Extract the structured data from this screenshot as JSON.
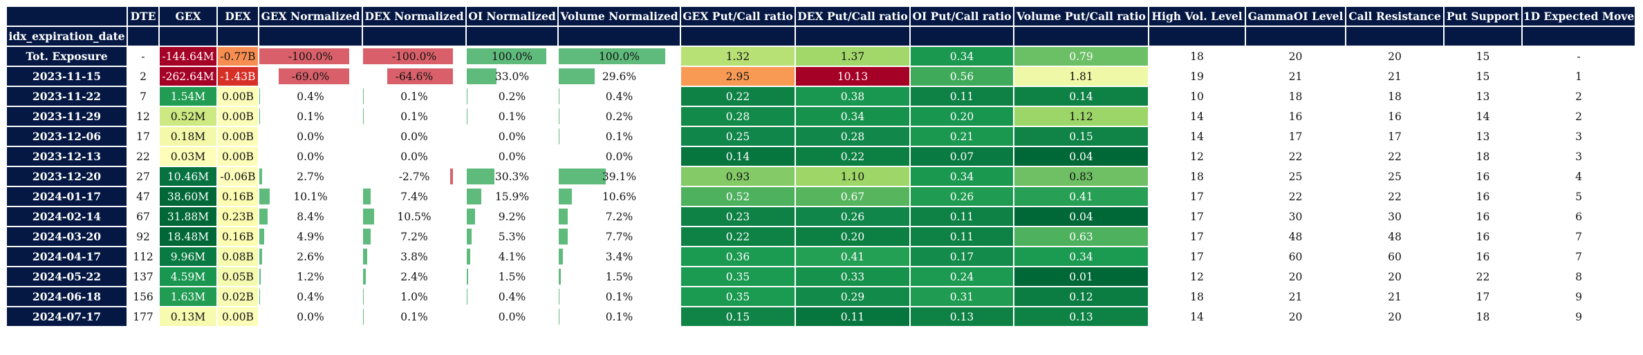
{
  "header": {
    "index_name": "idx_expiration_date",
    "columns": [
      "DTE",
      "GEX",
      "DEX",
      "GEX Normalized",
      "DEX Normalized",
      "OI Normalized",
      "Volume Normalized",
      "GEX Put/Call ratio",
      "DEX Put/Call ratio",
      "OI Put/Call ratio",
      "Volume Put/Call ratio",
      "High Vol. Level",
      "GammaOI Level",
      "Call Resistance",
      "Put Support",
      "1D Expected Move"
    ]
  },
  "colors": {
    "header_bg": "#051844",
    "bar_positive": "#5fbb7c",
    "bar_negative": "#d9606a",
    "text_dark": "#111111",
    "text_light": "#ffffff"
  },
  "rows": [
    {
      "date": "Tot. Exposure",
      "dte": "-",
      "gex": {
        "text": "-144.64M",
        "bg": "#a50026",
        "fg": "#ffffff"
      },
      "dex": {
        "text": "-0.77B",
        "bg": "#f88d52",
        "fg": "#111111"
      },
      "gex_norm": {
        "text": "-100.0%",
        "value": -100.0,
        "bg": "#d9606a"
      },
      "dex_norm": {
        "text": "-100.0%",
        "value": -100.0,
        "bg": "#d9606a"
      },
      "oi_norm": {
        "text": "100.0%",
        "value": 100.0,
        "bg": "#5fbb7c"
      },
      "vol_norm": {
        "text": "100.0%",
        "value": 100.0,
        "bg": "#5fbb7c"
      },
      "gex_pc": {
        "text": "1.32",
        "bg": "#b7e075",
        "fg": "#111111"
      },
      "dex_pc": {
        "text": "1.37",
        "bg": "#a2d86a",
        "fg": "#111111"
      },
      "oi_pc": {
        "text": "0.34",
        "bg": "#1a9850",
        "fg": "#ffffff"
      },
      "vol_pc": {
        "text": "0.79",
        "bg": "#6bbf64",
        "fg": "#ffffff"
      },
      "hvl": "18",
      "goi": "20",
      "cr": "20",
      "ps": "15",
      "em": "-"
    },
    {
      "date": "2023-11-15",
      "dte": "2",
      "gex": {
        "text": "-262.64M",
        "bg": "#a50026",
        "fg": "#ffffff"
      },
      "dex": {
        "text": "-1.43B",
        "bg": "#d73027",
        "fg": "#ffffff"
      },
      "gex_norm": {
        "text": "-69.0%",
        "value": -69.0
      },
      "dex_norm": {
        "text": "-64.6%",
        "value": -64.6
      },
      "oi_norm": {
        "text": "33.0%",
        "value": 33.0
      },
      "vol_norm": {
        "text": "29.6%",
        "value": 29.6
      },
      "gex_pc": {
        "text": "2.95",
        "bg": "#f99a54",
        "fg": "#111111"
      },
      "dex_pc": {
        "text": "10.13",
        "bg": "#a50026",
        "fg": "#ffffff"
      },
      "oi_pc": {
        "text": "0.56",
        "bg": "#3faa59",
        "fg": "#ffffff"
      },
      "vol_pc": {
        "text": "1.81",
        "bg": "#eff8a6",
        "fg": "#111111"
      },
      "hvl": "19",
      "goi": "21",
      "cr": "21",
      "ps": "15",
      "em": "1"
    },
    {
      "date": "2023-11-22",
      "dte": "7",
      "gex": {
        "text": "1.54M",
        "bg": "#219c52",
        "fg": "#ffffff"
      },
      "dex": {
        "text": "0.00B",
        "bg": "#fcfdb9",
        "fg": "#111111"
      },
      "gex_norm": {
        "text": "0.4%",
        "value": 0.4
      },
      "dex_norm": {
        "text": "0.1%",
        "value": 0.1
      },
      "oi_norm": {
        "text": "0.2%",
        "value": 0.2
      },
      "vol_norm": {
        "text": "0.4%",
        "value": 0.4
      },
      "gex_pc": {
        "text": "0.22",
        "bg": "#0e8245",
        "fg": "#ffffff"
      },
      "dex_pc": {
        "text": "0.38",
        "bg": "#199750",
        "fg": "#ffffff"
      },
      "oi_pc": {
        "text": "0.11",
        "bg": "#0e8245",
        "fg": "#ffffff"
      },
      "vol_pc": {
        "text": "0.14",
        "bg": "#0e8245",
        "fg": "#ffffff"
      },
      "hvl": "10",
      "goi": "18",
      "cr": "18",
      "ps": "13",
      "em": "2"
    },
    {
      "date": "2023-11-29",
      "dte": "12",
      "gex": {
        "text": "0.52M",
        "bg": "#cce982",
        "fg": "#111111"
      },
      "dex": {
        "text": "0.00B",
        "bg": "#fcfdb9",
        "fg": "#111111"
      },
      "gex_norm": {
        "text": "0.1%",
        "value": 0.1
      },
      "dex_norm": {
        "text": "0.1%",
        "value": 0.1
      },
      "oi_norm": {
        "text": "0.1%",
        "value": 0.1
      },
      "vol_norm": {
        "text": "0.2%",
        "value": 0.2
      },
      "gex_pc": {
        "text": "0.28",
        "bg": "#128a49",
        "fg": "#ffffff"
      },
      "dex_pc": {
        "text": "0.34",
        "bg": "#17924d",
        "fg": "#ffffff"
      },
      "oi_pc": {
        "text": "0.20",
        "bg": "#18954f",
        "fg": "#ffffff"
      },
      "vol_pc": {
        "text": "1.12",
        "bg": "#9cd568",
        "fg": "#111111"
      },
      "hvl": "14",
      "goi": "16",
      "cr": "16",
      "ps": "14",
      "em": "2"
    },
    {
      "date": "2023-12-06",
      "dte": "17",
      "gex": {
        "text": "0.18M",
        "bg": "#f3f9a8",
        "fg": "#111111"
      },
      "dex": {
        "text": "0.00B",
        "bg": "#fcfdb9",
        "fg": "#111111"
      },
      "gex_norm": {
        "text": "0.0%",
        "value": 0.0
      },
      "dex_norm": {
        "text": "0.0%",
        "value": 0.0
      },
      "oi_norm": {
        "text": "0.0%",
        "value": 0.0
      },
      "vol_norm": {
        "text": "0.1%",
        "value": 0.1
      },
      "gex_pc": {
        "text": "0.25",
        "bg": "#10864a",
        "fg": "#ffffff"
      },
      "dex_pc": {
        "text": "0.28",
        "bg": "#11884a",
        "fg": "#ffffff"
      },
      "oi_pc": {
        "text": "0.21",
        "bg": "#1a9850",
        "fg": "#ffffff"
      },
      "vol_pc": {
        "text": "0.15",
        "bg": "#0f8446",
        "fg": "#ffffff"
      },
      "hvl": "14",
      "goi": "17",
      "cr": "17",
      "ps": "13",
      "em": "3"
    },
    {
      "date": "2023-12-13",
      "dte": "22",
      "gex": {
        "text": "0.03M",
        "bg": "#fefeb8",
        "fg": "#111111"
      },
      "dex": {
        "text": "0.00B",
        "bg": "#fcfdb9",
        "fg": "#111111"
      },
      "gex_norm": {
        "text": "0.0%",
        "value": 0.0
      },
      "dex_norm": {
        "text": "0.0%",
        "value": 0.0
      },
      "oi_norm": {
        "text": "0.0%",
        "value": 0.0
      },
      "vol_norm": {
        "text": "0.0%",
        "value": 0.0
      },
      "gex_pc": {
        "text": "0.14",
        "bg": "#07753e",
        "fg": "#ffffff"
      },
      "dex_pc": {
        "text": "0.22",
        "bg": "#0c7f43",
        "fg": "#ffffff"
      },
      "oi_pc": {
        "text": "0.07",
        "bg": "#097a41",
        "fg": "#ffffff"
      },
      "vol_pc": {
        "text": "0.04",
        "bg": "#006837",
        "fg": "#ffffff"
      },
      "hvl": "12",
      "goi": "22",
      "cr": "22",
      "ps": "18",
      "em": "3"
    },
    {
      "date": "2023-12-20",
      "dte": "27",
      "gex": {
        "text": "10.46M",
        "bg": "#057240",
        "fg": "#ffffff"
      },
      "dex": {
        "text": "-0.06B",
        "bg": "#fefebd",
        "fg": "#111111"
      },
      "gex_norm": {
        "text": "2.7%",
        "value": 2.7
      },
      "dex_norm": {
        "text": "-2.7%",
        "value": -2.7
      },
      "oi_norm": {
        "text": "30.3%",
        "value": 30.3
      },
      "vol_norm": {
        "text": "39.1%",
        "value": 39.1
      },
      "gex_pc": {
        "text": "0.93",
        "bg": "#84ca66",
        "fg": "#111111"
      },
      "dex_pc": {
        "text": "1.10",
        "bg": "#9fd668",
        "fg": "#111111"
      },
      "oi_pc": {
        "text": "0.34",
        "bg": "#1a9850",
        "fg": "#ffffff"
      },
      "vol_pc": {
        "text": "0.83",
        "bg": "#6fc064",
        "fg": "#111111"
      },
      "hvl": "18",
      "goi": "25",
      "cr": "25",
      "ps": "16",
      "em": "4"
    },
    {
      "date": "2024-01-17",
      "dte": "47",
      "gex": {
        "text": "38.60M",
        "bg": "#006837",
        "fg": "#ffffff"
      },
      "dex": {
        "text": "0.16B",
        "bg": "#fcfdb3",
        "fg": "#111111"
      },
      "gex_norm": {
        "text": "10.1%",
        "value": 10.1
      },
      "dex_norm": {
        "text": "7.4%",
        "value": 7.4
      },
      "oi_norm": {
        "text": "15.9%",
        "value": 15.9
      },
      "vol_norm": {
        "text": "10.6%",
        "value": 10.6
      },
      "gex_pc": {
        "text": "0.52",
        "bg": "#4eb15e",
        "fg": "#ffffff"
      },
      "dex_pc": {
        "text": "0.67",
        "bg": "#57b55e",
        "fg": "#ffffff"
      },
      "oi_pc": {
        "text": "0.26",
        "bg": "#1f9c52",
        "fg": "#ffffff"
      },
      "vol_pc": {
        "text": "0.41",
        "bg": "#27a055",
        "fg": "#ffffff"
      },
      "hvl": "17",
      "goi": "22",
      "cr": "22",
      "ps": "16",
      "em": "5"
    },
    {
      "date": "2024-02-14",
      "dte": "67",
      "gex": {
        "text": "31.88M",
        "bg": "#006837",
        "fg": "#ffffff"
      },
      "dex": {
        "text": "0.23B",
        "bg": "#fcfdb0",
        "fg": "#111111"
      },
      "gex_norm": {
        "text": "8.4%",
        "value": 8.4
      },
      "dex_norm": {
        "text": "10.5%",
        "value": 10.5
      },
      "oi_norm": {
        "text": "9.2%",
        "value": 9.2
      },
      "vol_norm": {
        "text": "7.2%",
        "value": 7.2
      },
      "gex_pc": {
        "text": "0.23",
        "bg": "#0e8245",
        "fg": "#ffffff"
      },
      "dex_pc": {
        "text": "0.26",
        "bg": "#10864a",
        "fg": "#ffffff"
      },
      "oi_pc": {
        "text": "0.11",
        "bg": "#0e8245",
        "fg": "#ffffff"
      },
      "vol_pc": {
        "text": "0.04",
        "bg": "#006837",
        "fg": "#ffffff"
      },
      "hvl": "17",
      "goi": "30",
      "cr": "30",
      "ps": "16",
      "em": "6"
    },
    {
      "date": "2024-03-20",
      "dte": "92",
      "gex": {
        "text": "18.48M",
        "bg": "#006837",
        "fg": "#ffffff"
      },
      "dex": {
        "text": "0.16B",
        "bg": "#fcfdb3",
        "fg": "#111111"
      },
      "gex_norm": {
        "text": "4.9%",
        "value": 4.9
      },
      "dex_norm": {
        "text": "7.2%",
        "value": 7.2
      },
      "oi_norm": {
        "text": "5.3%",
        "value": 5.3
      },
      "vol_norm": {
        "text": "7.7%",
        "value": 7.7
      },
      "gex_pc": {
        "text": "0.22",
        "bg": "#0e8245",
        "fg": "#ffffff"
      },
      "dex_pc": {
        "text": "0.20",
        "bg": "#0c7f43",
        "fg": "#ffffff"
      },
      "oi_pc": {
        "text": "0.11",
        "bg": "#0e8245",
        "fg": "#ffffff"
      },
      "vol_pc": {
        "text": "0.63",
        "bg": "#4eb15e",
        "fg": "#ffffff"
      },
      "hvl": "17",
      "goi": "48",
      "cr": "48",
      "ps": "16",
      "em": "7"
    },
    {
      "date": "2024-04-17",
      "dte": "112",
      "gex": {
        "text": "9.96M",
        "bg": "#087a42",
        "fg": "#ffffff"
      },
      "dex": {
        "text": "0.08B",
        "bg": "#f6fbb0",
        "fg": "#111111"
      },
      "gex_norm": {
        "text": "2.6%",
        "value": 2.6
      },
      "dex_norm": {
        "text": "3.8%",
        "value": 3.8
      },
      "oi_norm": {
        "text": "4.1%",
        "value": 4.1
      },
      "vol_norm": {
        "text": "3.4%",
        "value": 3.4
      },
      "gex_pc": {
        "text": "0.36",
        "bg": "#1b9a51",
        "fg": "#ffffff"
      },
      "dex_pc": {
        "text": "0.41",
        "bg": "#24a055",
        "fg": "#ffffff"
      },
      "oi_pc": {
        "text": "0.17",
        "bg": "#138b4a",
        "fg": "#ffffff"
      },
      "vol_pc": {
        "text": "0.34",
        "bg": "#1b9a51",
        "fg": "#ffffff"
      },
      "hvl": "17",
      "goi": "60",
      "cr": "60",
      "ps": "16",
      "em": "7"
    },
    {
      "date": "2024-05-22",
      "dte": "137",
      "gex": {
        "text": "4.59M",
        "bg": "#199750",
        "fg": "#ffffff"
      },
      "dex": {
        "text": "0.05B",
        "bg": "#f4fab0",
        "fg": "#111111"
      },
      "gex_norm": {
        "text": "1.2%",
        "value": 1.2
      },
      "dex_norm": {
        "text": "2.4%",
        "value": 2.4
      },
      "oi_norm": {
        "text": "1.5%",
        "value": 1.5
      },
      "vol_norm": {
        "text": "1.5%",
        "value": 1.5
      },
      "gex_pc": {
        "text": "0.35",
        "bg": "#1b9a51",
        "fg": "#ffffff"
      },
      "dex_pc": {
        "text": "0.33",
        "bg": "#17924d",
        "fg": "#ffffff"
      },
      "oi_pc": {
        "text": "0.24",
        "bg": "#1c9a51",
        "fg": "#ffffff"
      },
      "vol_pc": {
        "text": "0.01",
        "bg": "#006837",
        "fg": "#ffffff"
      },
      "hvl": "12",
      "goi": "20",
      "cr": "20",
      "ps": "22",
      "em": "8"
    },
    {
      "date": "2024-06-18",
      "dte": "156",
      "gex": {
        "text": "1.63M",
        "bg": "#219c52",
        "fg": "#ffffff"
      },
      "dex": {
        "text": "0.02B",
        "bg": "#f7fbb4",
        "fg": "#111111"
      },
      "gex_norm": {
        "text": "0.4%",
        "value": 0.4
      },
      "dex_norm": {
        "text": "1.0%",
        "value": 1.0
      },
      "oi_norm": {
        "text": "0.4%",
        "value": 0.4
      },
      "vol_norm": {
        "text": "0.1%",
        "value": 0.1
      },
      "gex_pc": {
        "text": "0.35",
        "bg": "#1b9a51",
        "fg": "#ffffff"
      },
      "dex_pc": {
        "text": "0.29",
        "bg": "#128a49",
        "fg": "#ffffff"
      },
      "oi_pc": {
        "text": "0.31",
        "bg": "#1f9c52",
        "fg": "#ffffff"
      },
      "vol_pc": {
        "text": "0.12",
        "bg": "#0b7d43",
        "fg": "#ffffff"
      },
      "hvl": "18",
      "goi": "21",
      "cr": "21",
      "ps": "17",
      "em": "9"
    },
    {
      "date": "2024-07-17",
      "dte": "177",
      "gex": {
        "text": "0.13M",
        "bg": "#f7fbaf",
        "fg": "#111111"
      },
      "dex": {
        "text": "0.00B",
        "bg": "#fcfdb9",
        "fg": "#111111"
      },
      "gex_norm": {
        "text": "0.0%",
        "value": 0.0
      },
      "dex_norm": {
        "text": "0.1%",
        "value": 0.1
      },
      "oi_norm": {
        "text": "0.0%",
        "value": 0.0
      },
      "vol_norm": {
        "text": "0.1%",
        "value": 0.1
      },
      "gex_pc": {
        "text": "0.15",
        "bg": "#0f8446",
        "fg": "#ffffff"
      },
      "dex_pc": {
        "text": "0.11",
        "bg": "#07753e",
        "fg": "#ffffff"
      },
      "oi_pc": {
        "text": "0.13",
        "bg": "#0e8245",
        "fg": "#ffffff"
      },
      "vol_pc": {
        "text": "0.13",
        "bg": "#0e8245",
        "fg": "#ffffff"
      },
      "hvl": "14",
      "goi": "20",
      "cr": "20",
      "ps": "18",
      "em": "9"
    }
  ]
}
